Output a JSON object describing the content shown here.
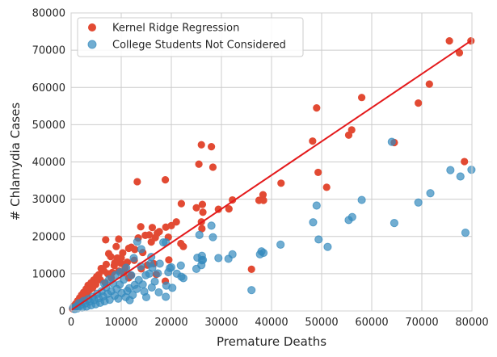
{
  "chart_data": {
    "type": "scatter",
    "title": "",
    "xlabel": "Premature Deaths",
    "ylabel": "# Chlamydia Cases",
    "xlim": [
      0,
      80000
    ],
    "ylim": [
      0,
      80000
    ],
    "xticks": [
      "0",
      "10000",
      "20000",
      "30000",
      "40000",
      "50000",
      "60000",
      "70000",
      "80000"
    ],
    "yticks": [
      "0",
      "10000",
      "20000",
      "30000",
      "40000",
      "50000",
      "60000",
      "70000",
      "80000"
    ],
    "grid": true,
    "legend_position": "top-left",
    "fit_line": {
      "color": "#e41a1c",
      "x": [
        0,
        80000
      ],
      "y": [
        200,
        72700
      ]
    },
    "series": [
      {
        "name": "Kernel Ridge Regression",
        "color": "#e24a33",
        "points": [
          [
            75500,
            72500
          ],
          [
            79800,
            72500
          ],
          [
            77500,
            69300
          ],
          [
            71500,
            60900
          ],
          [
            69300,
            55800
          ],
          [
            78500,
            40100
          ],
          [
            58000,
            57300
          ],
          [
            64500,
            45200
          ],
          [
            56000,
            48600
          ],
          [
            55400,
            47200
          ],
          [
            49000,
            54500
          ],
          [
            48200,
            45600
          ],
          [
            49300,
            37200
          ],
          [
            51000,
            33200
          ],
          [
            41900,
            34300
          ],
          [
            38300,
            31200
          ],
          [
            37500,
            29700
          ],
          [
            38400,
            29700
          ],
          [
            36000,
            11200
          ],
          [
            32200,
            29800
          ],
          [
            31500,
            27400
          ],
          [
            29400,
            27300
          ],
          [
            26000,
            44600
          ],
          [
            28000,
            44100
          ],
          [
            25500,
            39400
          ],
          [
            28300,
            38600
          ],
          [
            26200,
            28600
          ],
          [
            26000,
            23900
          ],
          [
            26100,
            22100
          ],
          [
            25000,
            27700
          ],
          [
            26300,
            26500
          ],
          [
            18800,
            35200
          ],
          [
            13200,
            34700
          ],
          [
            22000,
            28800
          ],
          [
            22400,
            17300
          ],
          [
            21900,
            18100
          ],
          [
            21000,
            23900
          ],
          [
            20000,
            22900
          ],
          [
            19400,
            19800
          ],
          [
            18900,
            22500
          ],
          [
            17600,
            21300
          ],
          [
            17200,
            20900
          ],
          [
            16800,
            19700
          ],
          [
            16200,
            22400
          ],
          [
            16000,
            18500
          ],
          [
            15600,
            20400
          ],
          [
            14800,
            20300
          ],
          [
            14300,
            15700
          ],
          [
            13900,
            22600
          ],
          [
            13400,
            19600
          ],
          [
            12700,
            16500
          ],
          [
            12600,
            13600
          ],
          [
            12000,
            17100
          ],
          [
            11500,
            16800
          ],
          [
            11200,
            13100
          ],
          [
            10800,
            11600
          ],
          [
            10500,
            10300
          ],
          [
            10000,
            14300
          ],
          [
            9900,
            12800
          ],
          [
            9500,
            19300
          ],
          [
            9000,
            17300
          ],
          [
            8600,
            12200
          ],
          [
            8200,
            10300
          ],
          [
            7900,
            14600
          ],
          [
            7500,
            15400
          ],
          [
            7000,
            12500
          ],
          [
            6900,
            19100
          ],
          [
            6500,
            10800
          ],
          [
            6000,
            11400
          ],
          [
            5800,
            8400
          ],
          [
            5500,
            9700
          ],
          [
            5100,
            9200
          ],
          [
            4900,
            7100
          ],
          [
            4500,
            8300
          ],
          [
            4300,
            6200
          ],
          [
            4000,
            7600
          ],
          [
            3700,
            5700
          ],
          [
            3400,
            6900
          ],
          [
            3200,
            4700
          ],
          [
            3000,
            5900
          ],
          [
            2800,
            4200
          ],
          [
            2500,
            5000
          ],
          [
            2300,
            3600
          ],
          [
            2100,
            4300
          ],
          [
            1900,
            2900
          ],
          [
            1700,
            3500
          ],
          [
            1500,
            2200
          ],
          [
            1300,
            2700
          ],
          [
            1100,
            1600
          ],
          [
            900,
            1900
          ],
          [
            700,
            1100
          ],
          [
            500,
            1300
          ],
          [
            300,
            600
          ],
          [
            12000,
            9500
          ],
          [
            15200,
            12300
          ],
          [
            17000,
            9800
          ],
          [
            19500,
            13700
          ],
          [
            18800,
            8000
          ],
          [
            16500,
            12700
          ],
          [
            14000,
            11300
          ],
          [
            11500,
            8900
          ],
          [
            9500,
            10700
          ],
          [
            8000,
            8900
          ],
          [
            6800,
            7600
          ],
          [
            7300,
            10000
          ],
          [
            8700,
            12900
          ],
          [
            10300,
            15600
          ],
          [
            9200,
            14200
          ]
        ]
      },
      {
        "name": "College Students Not Considered",
        "color": "#348abd",
        "points": [
          [
            79900,
            37900
          ],
          [
            75700,
            37800
          ],
          [
            77700,
            36100
          ],
          [
            78700,
            21000
          ],
          [
            71700,
            31600
          ],
          [
            69300,
            29100
          ],
          [
            64000,
            45400
          ],
          [
            64500,
            23600
          ],
          [
            58000,
            29800
          ],
          [
            56100,
            25200
          ],
          [
            55400,
            24400
          ],
          [
            49000,
            28300
          ],
          [
            48300,
            23800
          ],
          [
            49400,
            19200
          ],
          [
            51200,
            17200
          ],
          [
            41800,
            17800
          ],
          [
            38400,
            15600
          ],
          [
            38000,
            16000
          ],
          [
            37700,
            15200
          ],
          [
            36000,
            5600
          ],
          [
            32200,
            15200
          ],
          [
            31400,
            14000
          ],
          [
            29400,
            14200
          ],
          [
            28000,
            22900
          ],
          [
            28300,
            19800
          ],
          [
            26100,
            14800
          ],
          [
            26100,
            13600
          ],
          [
            26000,
            12300
          ],
          [
            25600,
            20400
          ],
          [
            26300,
            13700
          ],
          [
            25200,
            14300
          ],
          [
            25000,
            11300
          ],
          [
            22400,
            8800
          ],
          [
            22000,
            9200
          ],
          [
            21900,
            12200
          ],
          [
            21100,
            10000
          ],
          [
            20000,
            11700
          ],
          [
            19700,
            11500
          ],
          [
            19400,
            10400
          ],
          [
            18900,
            18400
          ],
          [
            19000,
            6800
          ],
          [
            18900,
            3800
          ],
          [
            17700,
            12700
          ],
          [
            17300,
            10100
          ],
          [
            16700,
            7900
          ],
          [
            16200,
            11600
          ],
          [
            16100,
            6300
          ],
          [
            15800,
            12700
          ],
          [
            15600,
            10000
          ],
          [
            14900,
            9600
          ],
          [
            14600,
            5200
          ],
          [
            14300,
            7100
          ],
          [
            13900,
            12000
          ],
          [
            13500,
            8300
          ],
          [
            13100,
            5900
          ],
          [
            12700,
            7000
          ],
          [
            12300,
            4300
          ],
          [
            12000,
            9600
          ],
          [
            11600,
            6100
          ],
          [
            11200,
            5400
          ],
          [
            10900,
            3700
          ],
          [
            10500,
            8400
          ],
          [
            10100,
            4800
          ],
          [
            9700,
            7100
          ],
          [
            9400,
            3300
          ],
          [
            9100,
            5900
          ],
          [
            8700,
            4100
          ],
          [
            8400,
            7400
          ],
          [
            8000,
            5300
          ],
          [
            7700,
            3000
          ],
          [
            7300,
            4600
          ],
          [
            7000,
            6300
          ],
          [
            6700,
            2600
          ],
          [
            6400,
            3900
          ],
          [
            6100,
            5300
          ],
          [
            5800,
            2200
          ],
          [
            5500,
            3400
          ],
          [
            5200,
            4600
          ],
          [
            4900,
            1800
          ],
          [
            4600,
            2900
          ],
          [
            4300,
            3800
          ],
          [
            4000,
            1500
          ],
          [
            3700,
            2500
          ],
          [
            3400,
            3200
          ],
          [
            3100,
            1200
          ],
          [
            2800,
            2000
          ],
          [
            2500,
            2700
          ],
          [
            2200,
            900
          ],
          [
            1900,
            1600
          ],
          [
            1600,
            2100
          ],
          [
            1300,
            700
          ],
          [
            1000,
            1200
          ],
          [
            700,
            500
          ],
          [
            400,
            800
          ],
          [
            18400,
            18400
          ],
          [
            16000,
            14500
          ],
          [
            14000,
            16600
          ],
          [
            13200,
            18600
          ],
          [
            12500,
            14200
          ],
          [
            11000,
            11600
          ],
          [
            9800,
            10400
          ],
          [
            8800,
            9600
          ],
          [
            7600,
            8500
          ],
          [
            6600,
            7300
          ],
          [
            15000,
            3700
          ],
          [
            17500,
            5000
          ],
          [
            20200,
            6200
          ],
          [
            11700,
            2900
          ]
        ]
      }
    ]
  }
}
